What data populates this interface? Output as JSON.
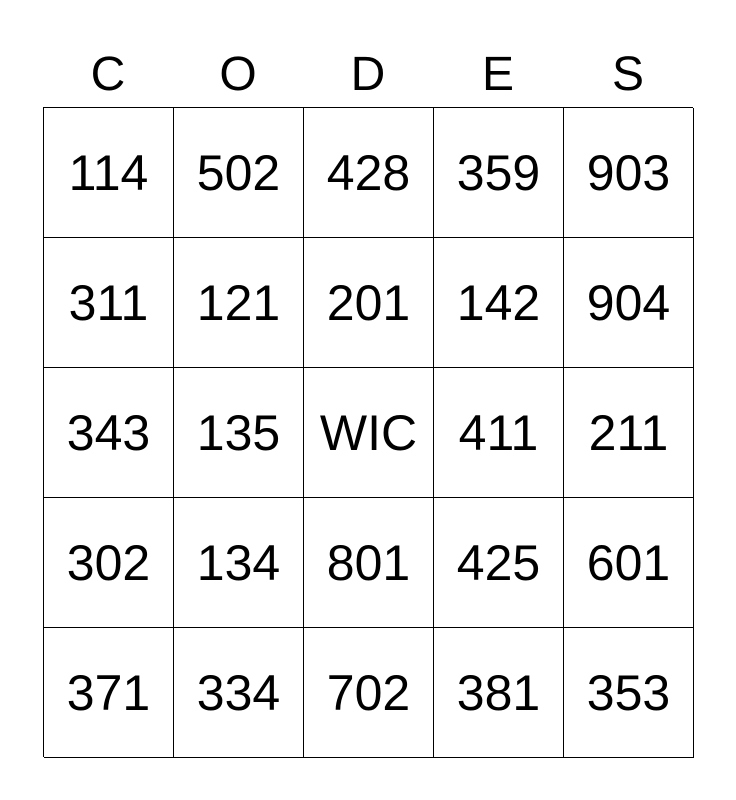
{
  "header": [
    "C",
    "O",
    "D",
    "E",
    "S"
  ],
  "rows": [
    [
      "114",
      "502",
      "428",
      "359",
      "903"
    ],
    [
      "311",
      "121",
      "201",
      "142",
      "904"
    ],
    [
      "343",
      "135",
      "WIC",
      "411",
      "211"
    ],
    [
      "302",
      "134",
      "801",
      "425",
      "601"
    ],
    [
      "371",
      "334",
      "702",
      "381",
      "353"
    ]
  ]
}
